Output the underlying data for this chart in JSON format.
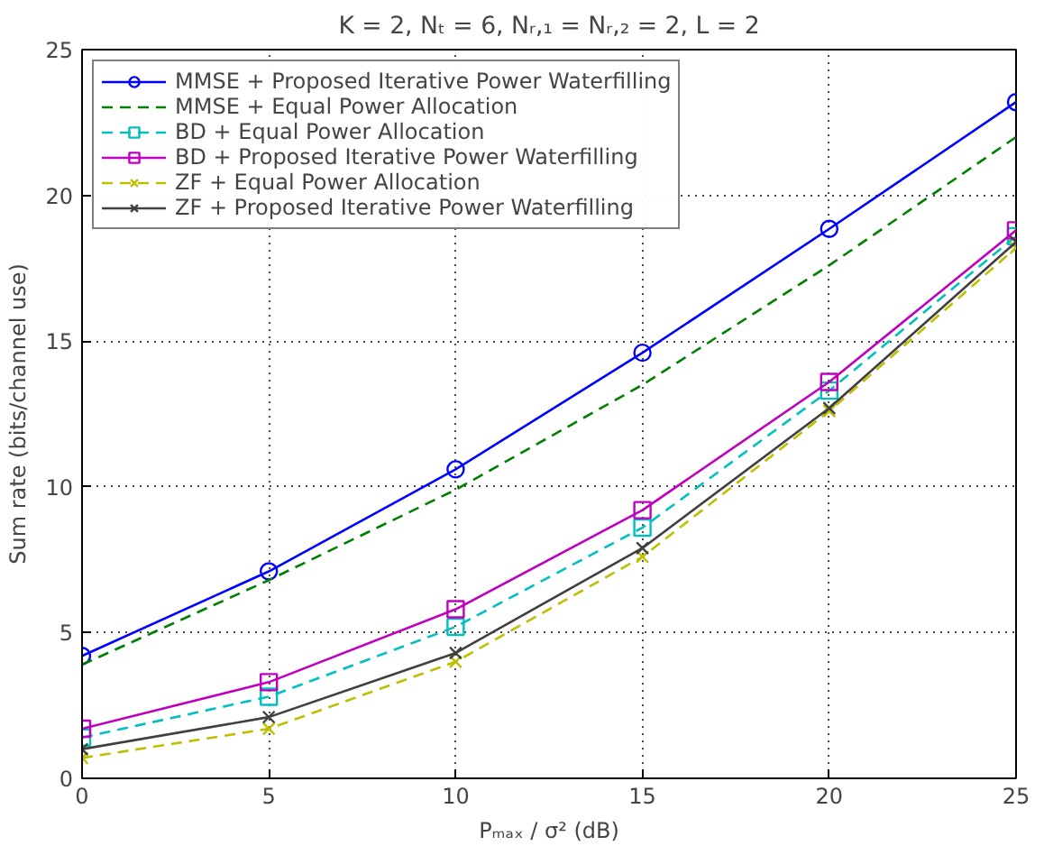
{
  "chart_data": {
    "type": "line",
    "title": "K = 2, Nₜ = 6, Nᵣ,₁ = Nᵣ,₂ = 2, L = 2",
    "xlabel": "Pₘₐₓ / σ² (dB)",
    "ylabel": "Sum rate (bits/channel use)",
    "x": [
      0,
      5,
      10,
      15,
      20,
      25
    ],
    "xlim": [
      0,
      25
    ],
    "xticks": [
      0,
      5,
      10,
      15,
      20,
      25
    ],
    "ylim": [
      0,
      25
    ],
    "yticks": [
      0,
      5,
      10,
      15,
      20,
      25
    ],
    "grid": true,
    "legend": "top left",
    "series": [
      {
        "name": "MMSE + Proposed Iterative Power Waterfilling",
        "color": "#0000ff",
        "marker": "circle",
        "line_style": "solid",
        "values": [
          4.2,
          7.1,
          10.6,
          14.6,
          18.85,
          23.2
        ]
      },
      {
        "name": "MMSE + Equal Power Allocation",
        "color": "#008000",
        "marker": "none",
        "line_style": "dashed",
        "values": [
          3.9,
          6.8,
          9.9,
          13.5,
          17.6,
          22.0
        ]
      },
      {
        "name": "BD + Equal Power Allocation",
        "color": "#00bfbf",
        "marker": "square",
        "line_style": "dashed",
        "values": [
          1.4,
          2.8,
          5.2,
          8.6,
          13.3,
          18.6
        ]
      },
      {
        "name": "BD + Proposed Iterative Power Waterfilling",
        "color": "#bf00bf",
        "marker": "square",
        "line_style": "solid",
        "values": [
          1.7,
          3.3,
          5.8,
          9.2,
          13.6,
          18.8
        ]
      },
      {
        "name": "ZF + Equal Power Allocation",
        "color": "#bfbf00",
        "marker": "cross",
        "line_style": "dashed",
        "values": [
          0.7,
          1.7,
          4.0,
          7.6,
          12.6,
          18.2
        ]
      },
      {
        "name": "ZF + Proposed Iterative Power Waterfilling",
        "color": "#404040",
        "marker": "cross",
        "line_style": "solid",
        "values": [
          1.0,
          2.1,
          4.3,
          7.9,
          12.7,
          18.4
        ]
      }
    ]
  }
}
